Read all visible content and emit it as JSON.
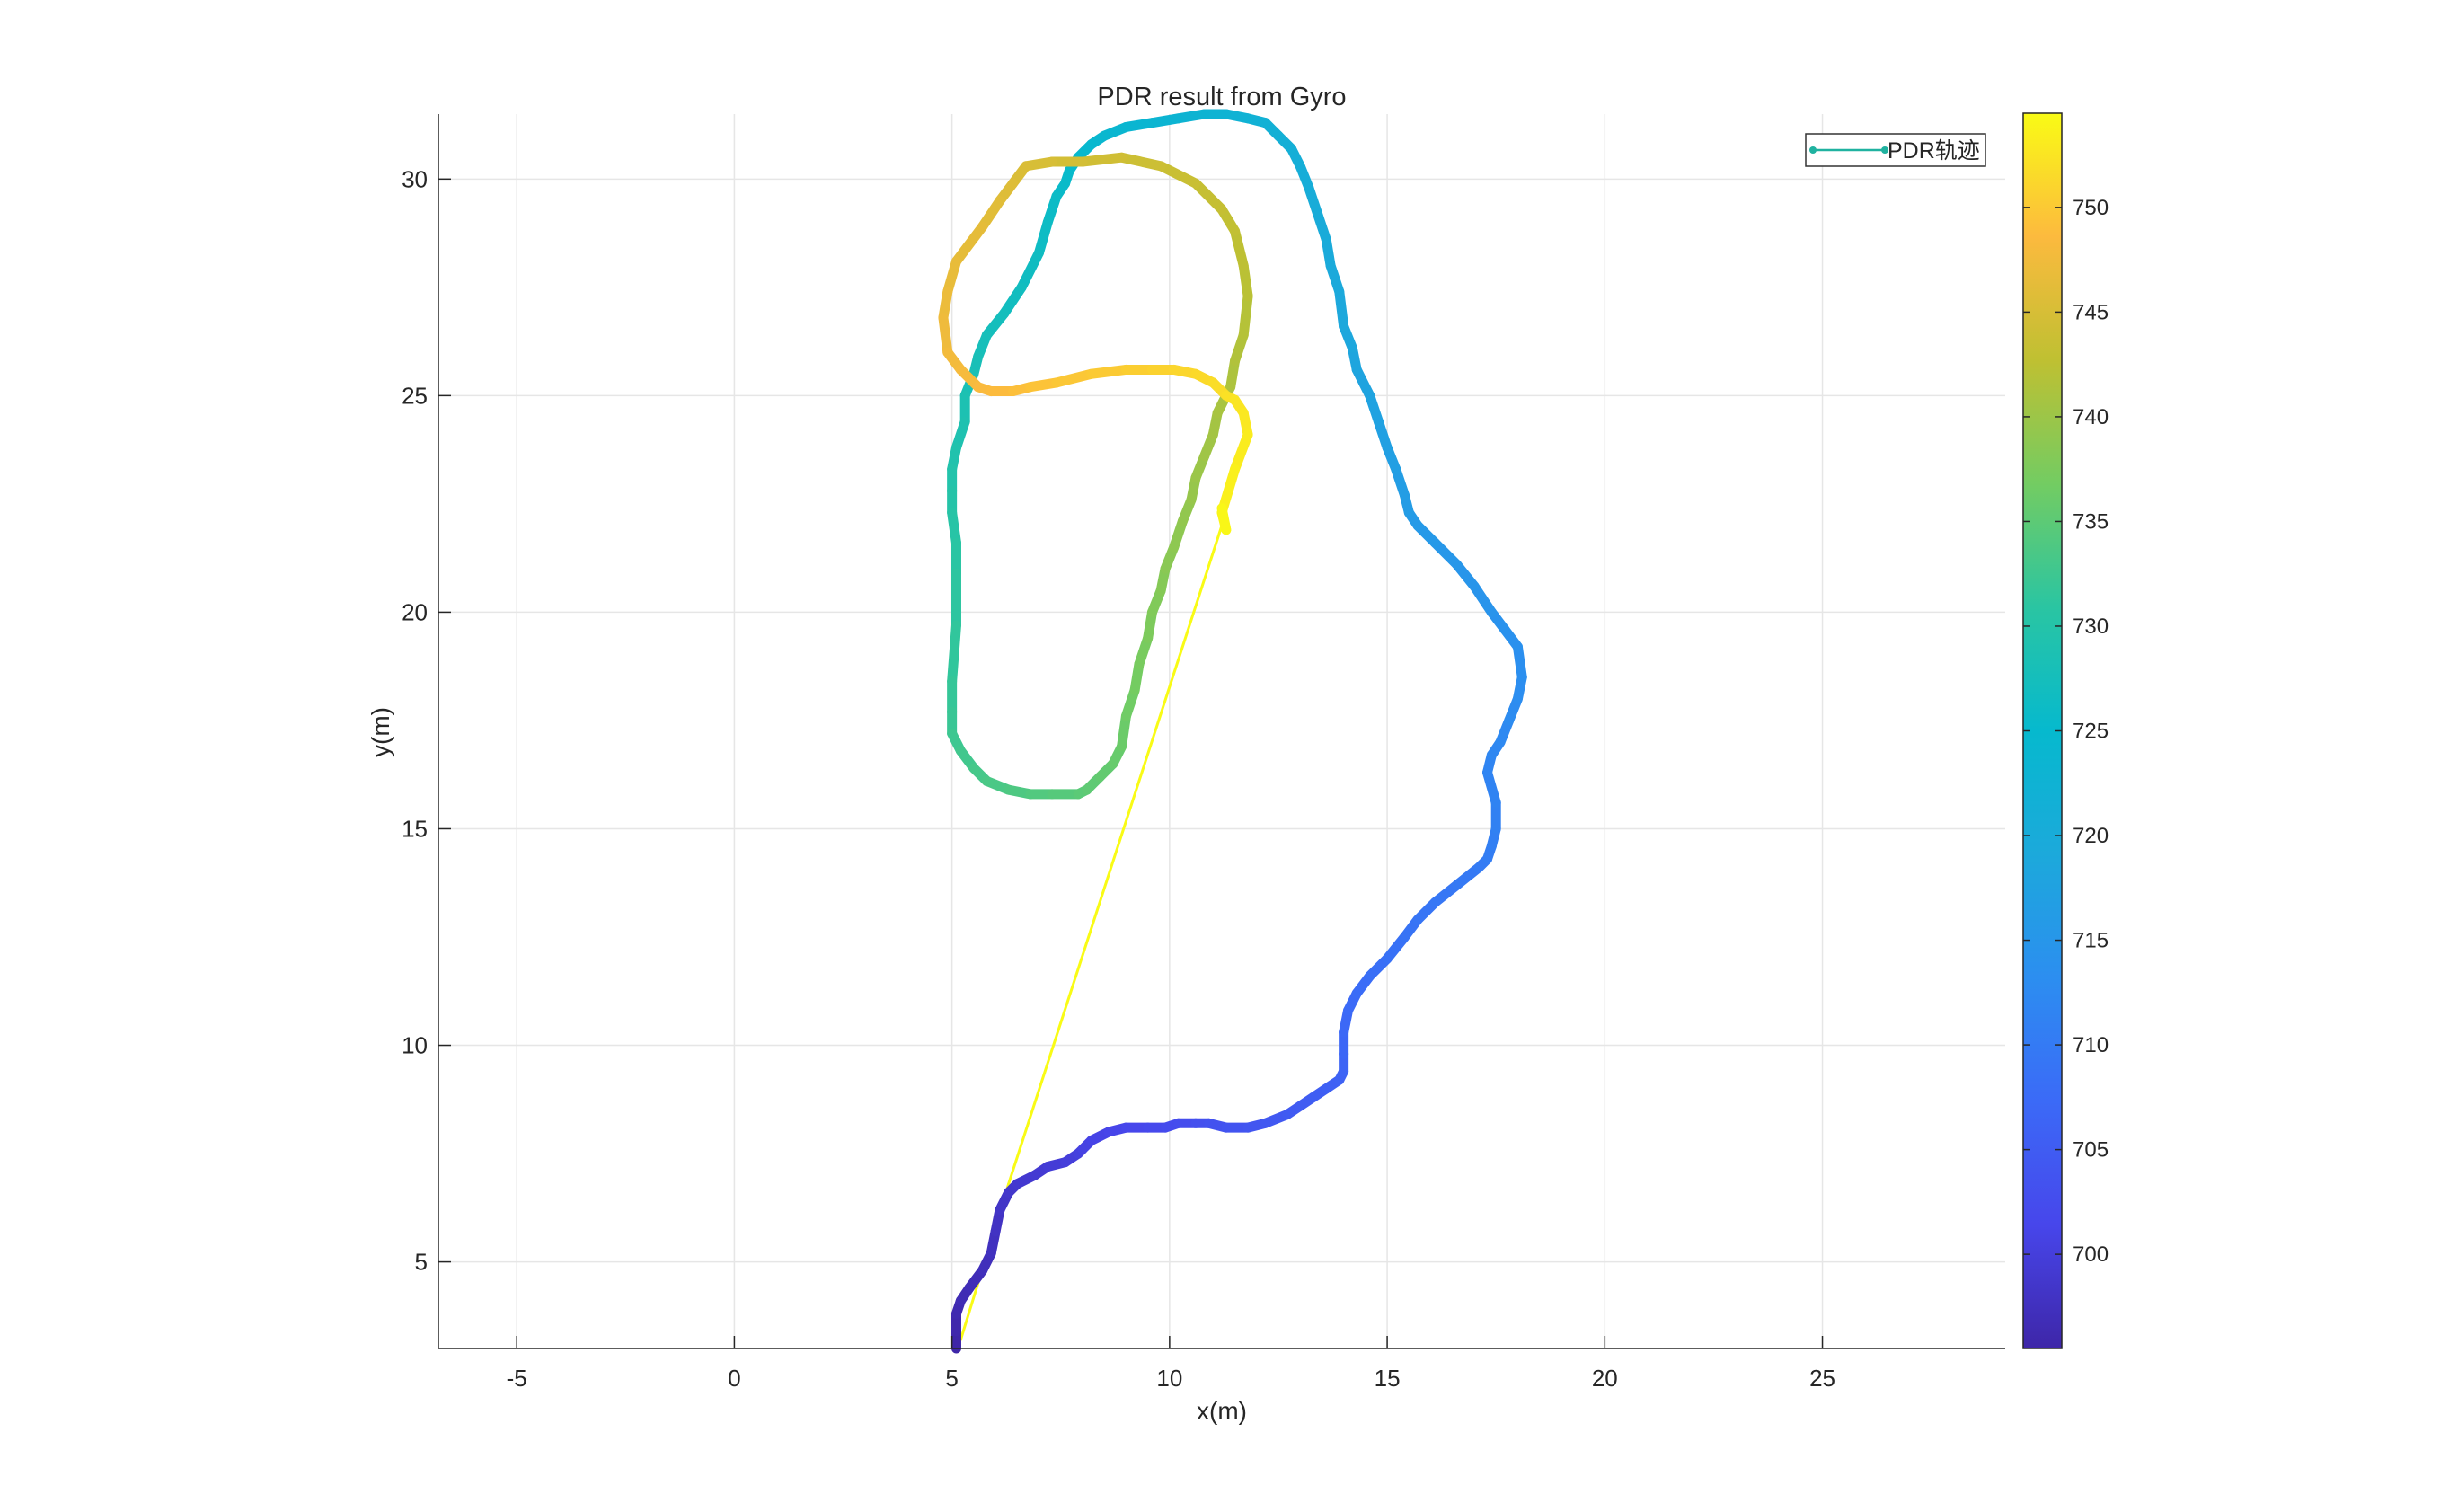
{
  "chart_data": {
    "type": "line",
    "title": "PDR result from Gyro",
    "xlabel": "x(m)",
    "ylabel": "y(m)",
    "xlim": [
      -6.8,
      29.2
    ],
    "ylim": [
      3,
      31.5
    ],
    "xticks": [
      "-5",
      "0",
      "5",
      "10",
      "15",
      "20",
      "25"
    ],
    "xtick_values": [
      -5,
      0,
      5,
      10,
      15,
      20,
      25
    ],
    "yticks": [
      "5",
      "10",
      "15",
      "20",
      "25",
      "30"
    ],
    "ytick_values": [
      5,
      10,
      15,
      20,
      25,
      30
    ],
    "grid": true,
    "legend": {
      "position": "top-right",
      "entries": [
        "PDR轨迹"
      ]
    },
    "legend_color": "#20B2A0",
    "colorbar": {
      "colormap": "parula",
      "lim": [
        695.5,
        754.5
      ],
      "ticks": [
        "700",
        "705",
        "710",
        "715",
        "720",
        "725",
        "730",
        "735",
        "740",
        "745",
        "750"
      ],
      "tick_values": [
        700,
        705,
        710,
        715,
        720,
        725,
        730,
        735,
        740,
        745,
        750
      ]
    },
    "series": [
      {
        "x": [
          5.1,
          5.1,
          5.1,
          5.2,
          5.4,
          5.7,
          5.9,
          6.0,
          6.1,
          6.3,
          6.5,
          6.9,
          7.2,
          7.6,
          7.9,
          8.0,
          8.2,
          8.6,
          9.0,
          9.5,
          9.9,
          10.2,
          10.6,
          10.9,
          11.3,
          11.8,
          12.2,
          12.7,
          13.0,
          13.3,
          13.6,
          13.9,
          14.0,
          14.0,
          14.0,
          14.1,
          14.3,
          14.6,
          15.0,
          15.4,
          15.7,
          16.1,
          16.6,
          17.1,
          17.3,
          17.4,
          17.5,
          17.5,
          17.3,
          17.4,
          17.6,
          17.8,
          18.0,
          18.1,
          18.0,
          17.7,
          17.4,
          17.0,
          16.6,
          16.1,
          15.7,
          15.5,
          15.4,
          15.2,
          15.0,
          14.8,
          14.6,
          14.3,
          14.2,
          14.0,
          13.9,
          13.7,
          13.6,
          13.4,
          13.2,
          13.0,
          12.8,
          12.5,
          12.2,
          11.8,
          11.3,
          10.8,
          10.2,
          9.6,
          9.0,
          8.5,
          8.2,
          7.9,
          7.7,
          7.6,
          7.4,
          7.2,
          7.0,
          6.6,
          6.2,
          5.8,
          5.6,
          5.5,
          5.3,
          5.3,
          5.1,
          5.0,
          5.0,
          5.0,
          5.1,
          5.1,
          5.1,
          5.0,
          5.0,
          5.0,
          5.2,
          5.5,
          5.8,
          6.3,
          6.8,
          7.3,
          7.9,
          8.1,
          8.4,
          8.7,
          8.9,
          9.0,
          9.2,
          9.3,
          9.5,
          9.6,
          9.8,
          9.9,
          10.1,
          10.3,
          10.5,
          10.6,
          10.8,
          11.0,
          11.1,
          11.4,
          11.5,
          11.7,
          11.8,
          11.7,
          11.5,
          11.2,
          10.6,
          9.8,
          8.9,
          8.0,
          7.3,
          6.7,
          6.4,
          6.1,
          5.7,
          5.1,
          4.9,
          4.8,
          4.9,
          5.2,
          5.6,
          5.9,
          6.4,
          6.8,
          7.4,
          8.2,
          9.0,
          9.6,
          10.1,
          10.6,
          11.0,
          11.3,
          11.5,
          11.7,
          11.8,
          11.5,
          11.2,
          11.3,
          11.2
        ],
        "y": [
          3.0,
          3.4,
          3.8,
          4.1,
          4.4,
          4.8,
          5.2,
          5.7,
          6.2,
          6.6,
          6.8,
          7.0,
          7.2,
          7.3,
          7.5,
          7.6,
          7.8,
          8.0,
          8.1,
          8.1,
          8.1,
          8.2,
          8.2,
          8.2,
          8.1,
          8.1,
          8.2,
          8.4,
          8.6,
          8.8,
          9.0,
          9.2,
          9.4,
          9.8,
          10.3,
          10.8,
          11.2,
          11.6,
          12.0,
          12.5,
          12.9,
          13.3,
          13.7,
          14.1,
          14.3,
          14.6,
          15.0,
          15.6,
          16.3,
          16.7,
          17.0,
          17.5,
          18.0,
          18.5,
          19.2,
          19.6,
          20.0,
          20.6,
          21.1,
          21.6,
          22.0,
          22.3,
          22.7,
          23.3,
          23.8,
          24.4,
          25.0,
          25.6,
          26.1,
          26.6,
          27.4,
          28.0,
          28.6,
          29.2,
          29.8,
          30.3,
          30.7,
          31.0,
          31.3,
          31.4,
          31.5,
          31.5,
          31.4,
          31.3,
          31.2,
          31.0,
          30.8,
          30.5,
          30.2,
          29.9,
          29.6,
          29.0,
          28.3,
          27.5,
          26.9,
          26.4,
          25.9,
          25.5,
          25.0,
          24.4,
          23.8,
          23.3,
          22.8,
          22.3,
          21.6,
          20.9,
          19.7,
          18.4,
          17.7,
          17.2,
          16.8,
          16.4,
          16.1,
          15.9,
          15.8,
          15.8,
          15.8,
          15.9,
          16.2,
          16.5,
          16.9,
          17.6,
          18.2,
          18.8,
          19.4,
          20.0,
          20.5,
          21.0,
          21.5,
          22.1,
          22.6,
          23.1,
          23.6,
          24.1,
          24.6,
          25.2,
          25.8,
          26.4,
          27.3,
          28.0,
          28.8,
          29.3,
          29.9,
          30.3,
          30.5,
          30.4,
          30.4,
          30.3,
          29.9,
          29.5,
          28.9,
          28.1,
          27.4,
          26.8,
          26.0,
          25.6,
          25.2,
          25.1,
          25.1,
          25.2,
          25.3,
          25.5,
          25.6,
          25.6,
          25.6,
          25.5,
          25.3,
          25.0,
          24.9,
          24.6,
          24.1,
          23.3,
          22.3,
          21.9,
          22.4
        ]
      },
      {
        "x": [
          11.2,
          6.3,
          5.2
        ],
        "y": [
          22.0,
          6.8,
          3.2
        ]
      }
    ]
  }
}
